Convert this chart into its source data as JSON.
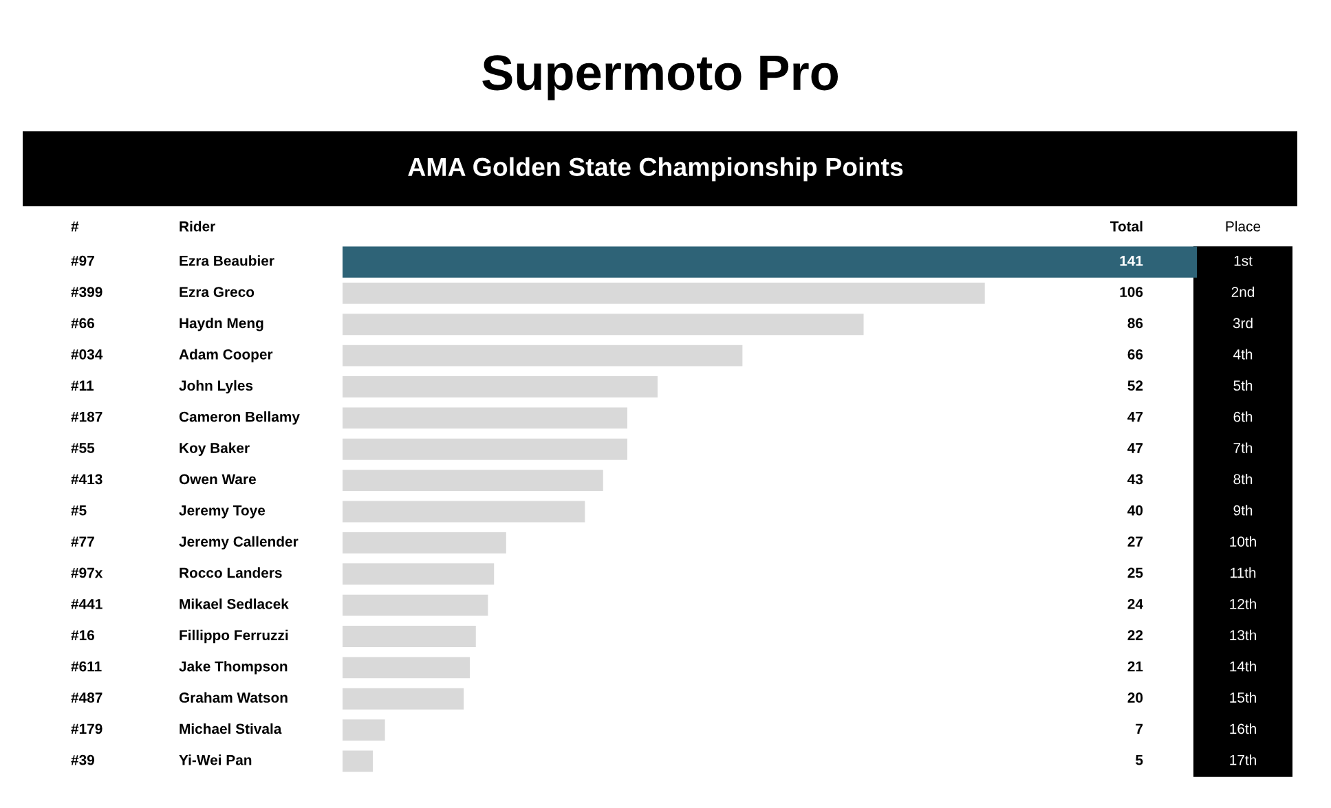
{
  "chart_data": {
    "type": "bar",
    "orientation": "horizontal",
    "title": "Supermoto Pro",
    "subtitle": "AMA Golden State Championship Points",
    "ylabel": "Rider",
    "xlabel": "Total",
    "y2label": "Place",
    "categories": [
      "Ezra Beaubier",
      "Ezra Greco",
      "Haydn Meng",
      "Adam Cooper",
      "John Lyles",
      "Cameron Bellamy",
      "Koy Baker",
      "Owen Ware",
      "Jeremy Toye",
      "Jeremy Callender",
      "Rocco Landers",
      "Mikael Sedlacek",
      "Fillippo Ferruzzi",
      "Jake Thompson",
      "Graham Watson",
      "Michael Stivala",
      "Yi-Wei Pan"
    ],
    "y2_categories": [
      "1st",
      "2nd",
      "3rd",
      "4th",
      "5th",
      "6th",
      "7th",
      "8th",
      "9th",
      "10th",
      "11th",
      "12th",
      "13th",
      "14th",
      "15th",
      "16th",
      "17th"
    ],
    "values": [
      141,
      106,
      86,
      66,
      52,
      47,
      47,
      43,
      40,
      27,
      25,
      24,
      22,
      21,
      20,
      7,
      5
    ],
    "colors": [
      "#2e6377",
      "#d9d9d9",
      "#d9d9d9",
      "#d9d9d9",
      "#d9d9d9",
      "#d9d9d9",
      "#d9d9d9",
      "#d9d9d9",
      "#d9d9d9",
      "#d9d9d9",
      "#d9d9d9",
      "#d9d9d9",
      "#d9d9d9",
      "#d9d9d9",
      "#d9d9d9",
      "#d9d9d9",
      "#d9d9d9"
    ],
    "data_labels": true,
    "annotations": [
      "#",
      "#97",
      "#399",
      "#66",
      "#034",
      "#11",
      "#187",
      "#55",
      "#413",
      "#5",
      "#77",
      "#97x",
      "#441",
      "#16",
      "#611",
      "#487",
      "#179",
      "#39"
    ]
  }
}
